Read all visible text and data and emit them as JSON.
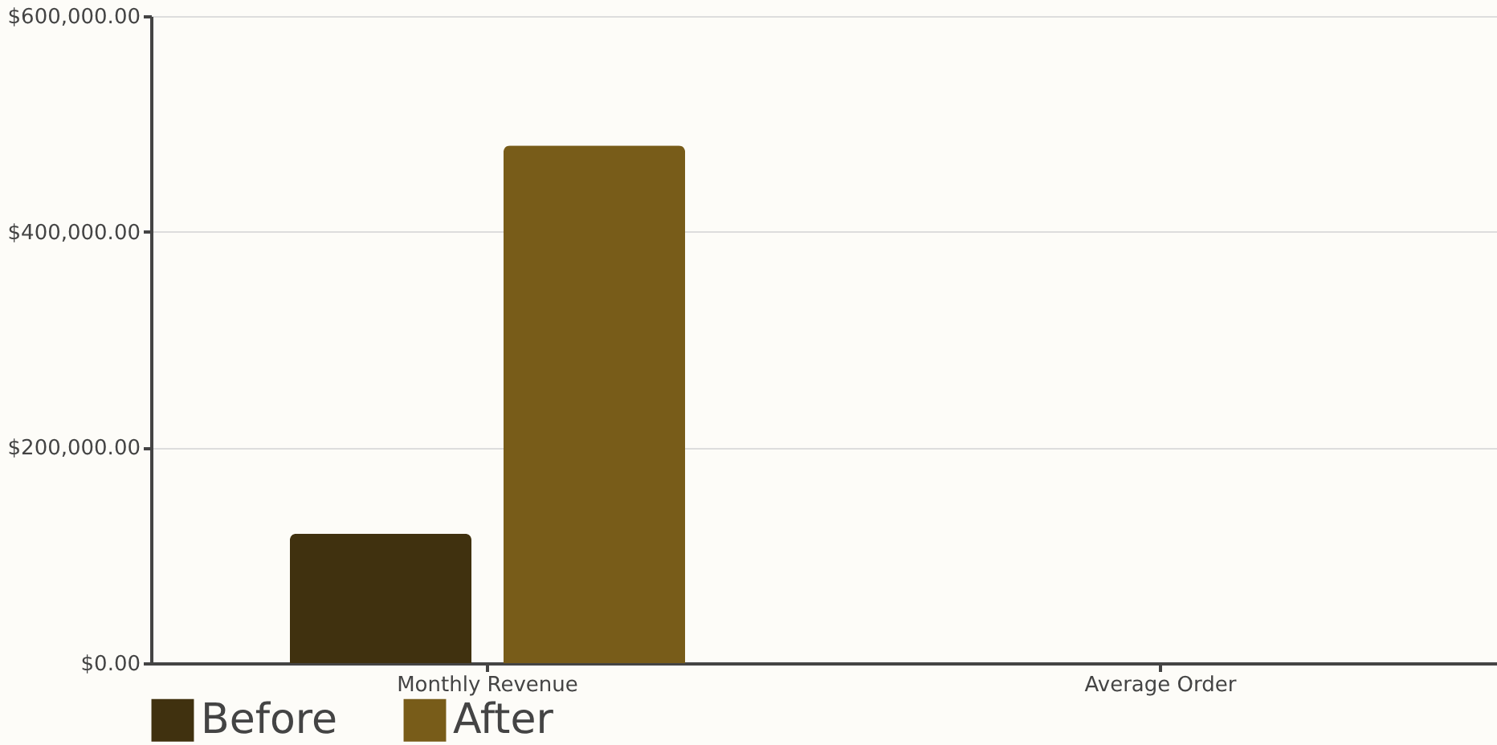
{
  "chart_data": {
    "type": "bar",
    "categories": [
      "Monthly Revenue",
      "Average Order"
    ],
    "series": [
      {
        "name": "Before",
        "color": "#40310f",
        "values": [
          120000,
          0
        ]
      },
      {
        "name": "After",
        "color": "#785c19",
        "values": [
          480000,
          0
        ]
      }
    ],
    "ylim": [
      0,
      600000
    ],
    "yticks": [
      {
        "value": 0,
        "label": "$0.00"
      },
      {
        "value": 200000,
        "label": "$200,000.00"
      },
      {
        "value": 400000,
        "label": "$400,000.00"
      },
      {
        "value": 600000,
        "label": "$600,000.00"
      }
    ],
    "grid": "y",
    "legend": "bottom"
  }
}
